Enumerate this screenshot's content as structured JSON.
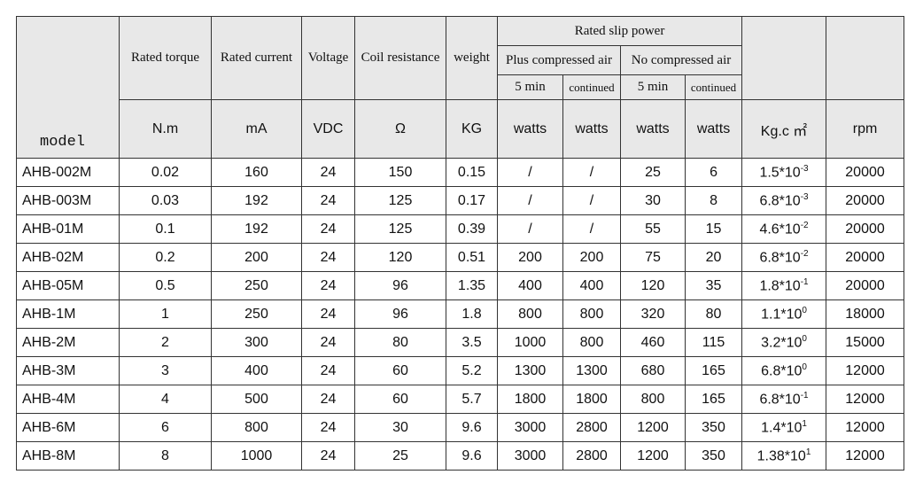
{
  "header": {
    "model": "model",
    "columns": [
      "Rated torque",
      "Rated current",
      "Voltage",
      "Coil resistance",
      "weight"
    ],
    "group": "Rated slip power",
    "subgroups": [
      "Plus compressed air",
      "No compressed air"
    ],
    "periods": [
      "5 min",
      "continued",
      "5 min",
      "continued"
    ]
  },
  "units": [
    "N.m",
    "mA",
    "VDC",
    "Ω",
    "KG",
    "watts",
    "watts",
    "watts",
    "watts",
    "Kg.c ㎡",
    "rpm"
  ],
  "rows": [
    [
      "AHB-002M",
      "0.02",
      "160",
      "24",
      "150",
      "0.15",
      "/",
      "/",
      "25",
      "6",
      {
        "base": "1.5*10",
        "exp": "-3"
      },
      "20000"
    ],
    [
      "AHB-003M",
      "0.03",
      "192",
      "24",
      "125",
      "0.17",
      "/",
      "/",
      "30",
      "8",
      {
        "base": "6.8*10",
        "exp": "-3"
      },
      "20000"
    ],
    [
      "AHB-01M",
      "0.1",
      "192",
      "24",
      "125",
      "0.39",
      "/",
      "/",
      "55",
      "15",
      {
        "base": "4.6*10",
        "exp": "-2"
      },
      "20000"
    ],
    [
      "AHB-02M",
      "0.2",
      "200",
      "24",
      "120",
      "0.51",
      "200",
      "200",
      "75",
      "20",
      {
        "base": "6.8*10",
        "exp": "-2"
      },
      "20000"
    ],
    [
      "AHB-05M",
      "0.5",
      "250",
      "24",
      "96",
      "1.35",
      "400",
      "400",
      "120",
      "35",
      {
        "base": "1.8*10",
        "exp": "-1"
      },
      "20000"
    ],
    [
      "AHB-1M",
      "1",
      "250",
      "24",
      "96",
      "1.8",
      "800",
      "800",
      "320",
      "80",
      {
        "base": "1.1*10",
        "exp": "0"
      },
      "18000"
    ],
    [
      "AHB-2M",
      "2",
      "300",
      "24",
      "80",
      "3.5",
      "1000",
      "800",
      "460",
      "115",
      {
        "base": "3.2*10",
        "exp": "0"
      },
      "15000"
    ],
    [
      "AHB-3M",
      "3",
      "400",
      "24",
      "60",
      "5.2",
      "1300",
      "1300",
      "680",
      "165",
      {
        "base": "6.8*10",
        "exp": "0"
      },
      "12000"
    ],
    [
      "AHB-4M",
      "4",
      "500",
      "24",
      "60",
      "5.7",
      "1800",
      "1800",
      "800",
      "165",
      {
        "base": "6.8*10",
        "exp": "-1"
      },
      "12000"
    ],
    [
      "AHB-6M",
      "6",
      "800",
      "24",
      "30",
      "9.6",
      "3000",
      "2800",
      "1200",
      "350",
      {
        "base": "1.4*10",
        "exp": "1"
      },
      "12000"
    ],
    [
      "AHB-8M",
      "8",
      "1000",
      "24",
      "25",
      "9.6",
      "3000",
      "2800",
      "1200",
      "350",
      {
        "base": "1.38*10",
        "exp": "1"
      },
      "12000"
    ]
  ]
}
